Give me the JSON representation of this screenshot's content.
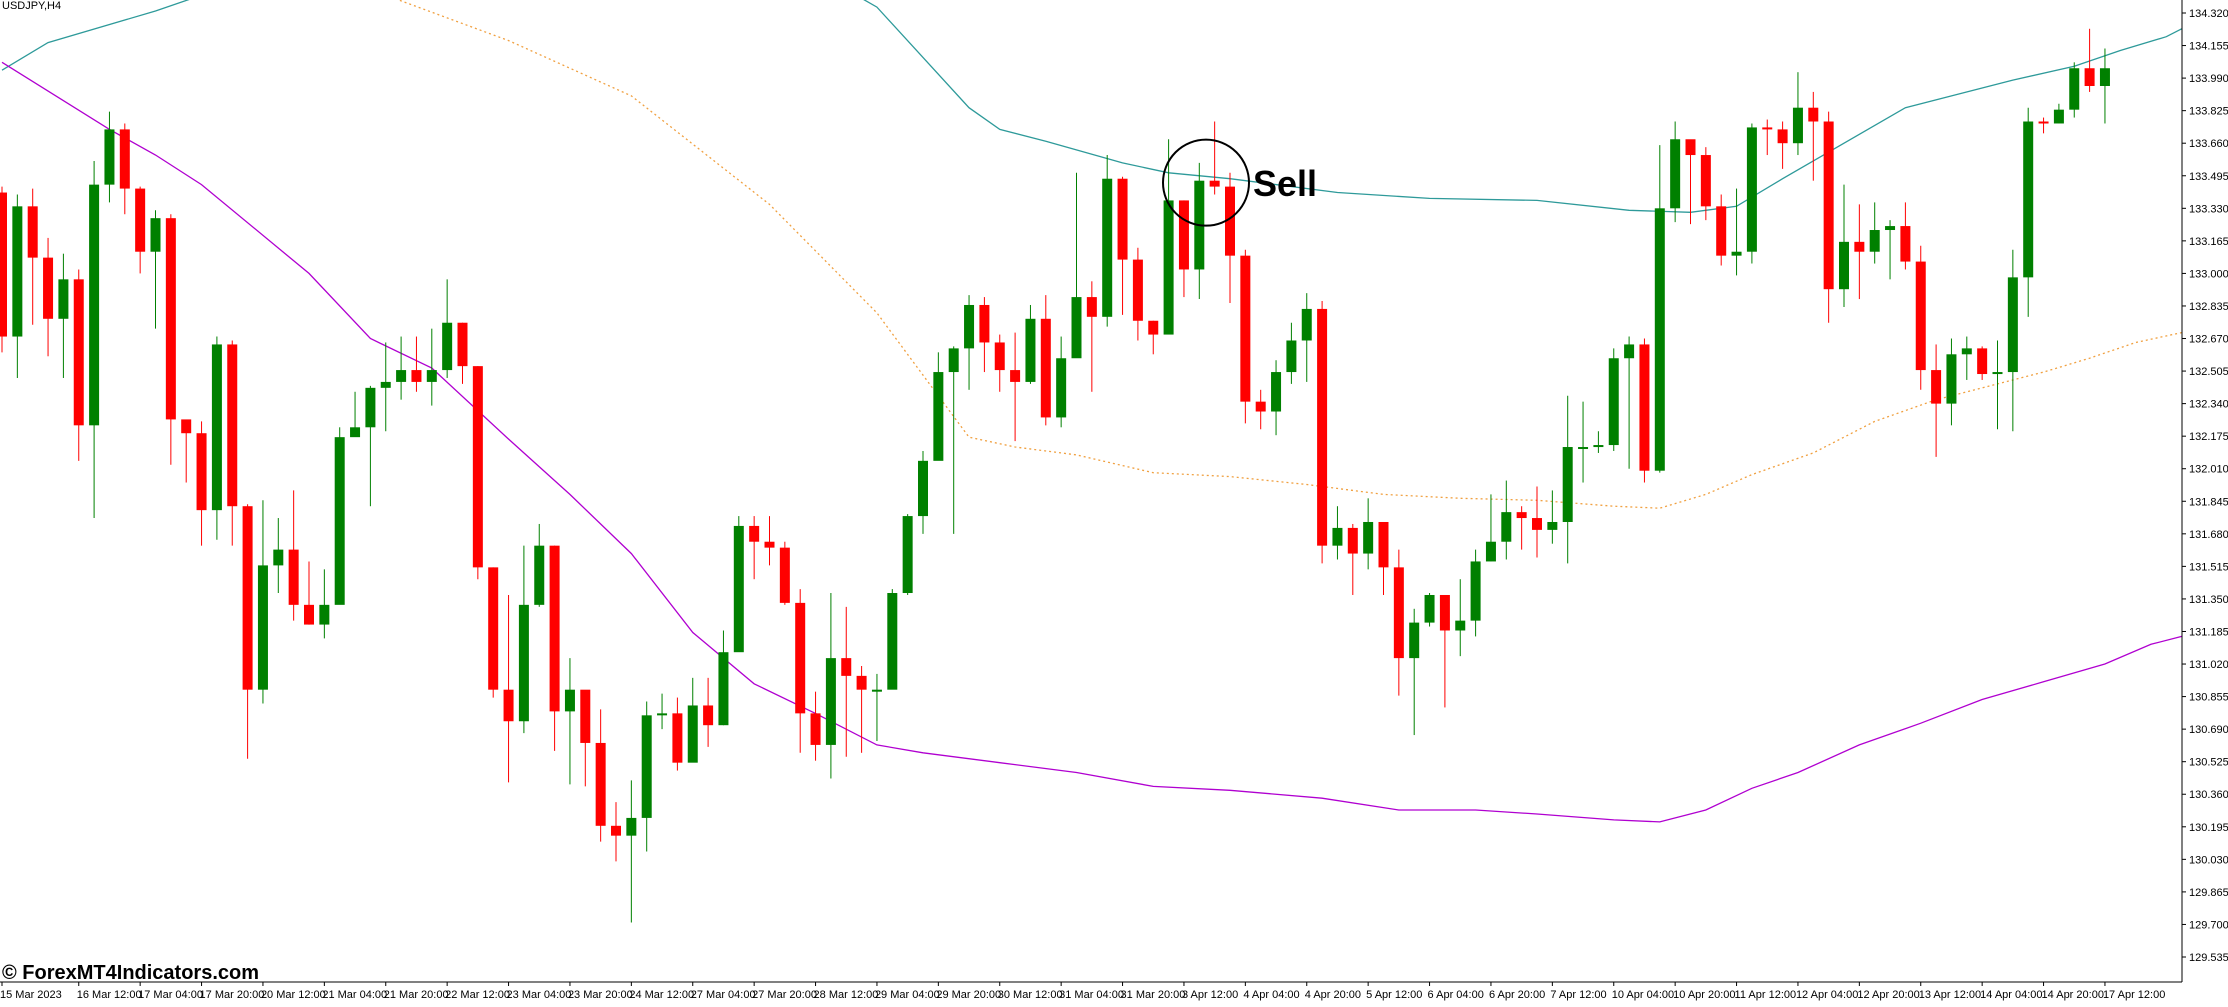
{
  "window": {
    "symbol": "USDJPY,H4"
  },
  "watermark": "© ForexMT4Indicators.com",
  "annotation": {
    "text": "Sell",
    "price": 133.46
  },
  "colors": {
    "bull": "#008000",
    "bear": "#ff0000",
    "upper_band": "#2e9a9a",
    "lower_band": "#b000d0",
    "middle_line": "#f0a040",
    "axis": "#000000",
    "background": "#ffffff"
  },
  "chart_data": {
    "type": "candlestick",
    "ylim": [
      129.535,
      134.4
    ],
    "price_ticks": [
      "134.320",
      "134.155",
      "133.990",
      "133.825",
      "133.660",
      "133.495",
      "133.330",
      "133.165",
      "133.000",
      "132.835",
      "132.670",
      "132.505",
      "132.340",
      "132.175",
      "132.010",
      "131.845",
      "131.680",
      "131.515",
      "131.350",
      "131.185",
      "131.020",
      "130.855",
      "130.690",
      "130.525",
      "130.360",
      "130.195",
      "130.030",
      "129.865",
      "129.700",
      "129.535"
    ],
    "time_ticks": [
      {
        "label": "15 Mar 2023",
        "bar": 0
      },
      {
        "label": "16 Mar 12:00",
        "bar": 5
      },
      {
        "label": "17 Mar 04:00",
        "bar": 9
      },
      {
        "label": "17 Mar 20:00",
        "bar": 13
      },
      {
        "label": "20 Mar 12:00",
        "bar": 17
      },
      {
        "label": "21 Mar 04:00",
        "bar": 21
      },
      {
        "label": "21 Mar 20:00",
        "bar": 25
      },
      {
        "label": "22 Mar 12:00",
        "bar": 29
      },
      {
        "label": "23 Mar 04:00",
        "bar": 33
      },
      {
        "label": "23 Mar 20:00",
        "bar": 37
      },
      {
        "label": "24 Mar 12:00",
        "bar": 41
      },
      {
        "label": "27 Mar 04:00",
        "bar": 45
      },
      {
        "label": "27 Mar 20:00",
        "bar": 49
      },
      {
        "label": "28 Mar 12:00",
        "bar": 53
      },
      {
        "label": "29 Mar 04:00",
        "bar": 57
      },
      {
        "label": "29 Mar 20:00",
        "bar": 61
      },
      {
        "label": "30 Mar 12:00",
        "bar": 65
      },
      {
        "label": "31 Mar 04:00",
        "bar": 69
      },
      {
        "label": "31 Mar 20:00",
        "bar": 73
      },
      {
        "label": "3 Apr 12:00",
        "bar": 77
      },
      {
        "label": "4 Apr 04:00",
        "bar": 81
      },
      {
        "label": "4 Apr 20:00",
        "bar": 85
      },
      {
        "label": "5 Apr 12:00",
        "bar": 89
      },
      {
        "label": "6 Apr 04:00",
        "bar": 93
      },
      {
        "label": "6 Apr 20:00",
        "bar": 97
      },
      {
        "label": "7 Apr 12:00",
        "bar": 101
      },
      {
        "label": "10 Apr 04:00",
        "bar": 105
      },
      {
        "label": "10 Apr 20:00",
        "bar": 109
      },
      {
        "label": "11 Apr 12:00",
        "bar": 113
      },
      {
        "label": "12 Apr 04:00",
        "bar": 117
      },
      {
        "label": "12 Apr 20:00",
        "bar": 121
      },
      {
        "label": "13 Apr 12:00",
        "bar": 125
      },
      {
        "label": "14 Apr 04:00",
        "bar": 129
      },
      {
        "label": "14 Apr 20:00",
        "bar": 133
      },
      {
        "label": "17 Apr 12:00",
        "bar": 137
      }
    ],
    "candles": [
      [
        133.41,
        132.68,
        133.44,
        132.6
      ],
      [
        132.68,
        133.34,
        133.4,
        132.47
      ],
      [
        133.34,
        133.08,
        133.43,
        132.74
      ],
      [
        133.08,
        132.77,
        133.18,
        132.58
      ],
      [
        132.77,
        132.97,
        133.1,
        132.47
      ],
      [
        132.97,
        132.23,
        133.02,
        132.05
      ],
      [
        132.23,
        133.45,
        133.57,
        131.76
      ],
      [
        133.45,
        133.73,
        133.82,
        133.36
      ],
      [
        133.73,
        133.43,
        133.76,
        133.3
      ],
      [
        133.43,
        133.11,
        133.44,
        133.0
      ],
      [
        133.11,
        133.28,
        133.32,
        132.72
      ],
      [
        133.28,
        132.26,
        133.3,
        132.03
      ],
      [
        132.26,
        132.19,
        132.25,
        131.94
      ],
      [
        132.19,
        131.8,
        132.25,
        131.62
      ],
      [
        131.8,
        132.64,
        132.68,
        131.65
      ],
      [
        132.64,
        131.82,
        132.66,
        131.62
      ],
      [
        131.82,
        130.89,
        131.83,
        130.54
      ],
      [
        130.89,
        131.52,
        131.85,
        130.82
      ],
      [
        131.52,
        131.6,
        131.76,
        131.38
      ],
      [
        131.6,
        131.32,
        131.9,
        131.24
      ],
      [
        131.32,
        131.22,
        131.54,
        131.22
      ],
      [
        131.22,
        131.32,
        131.5,
        131.15
      ],
      [
        131.32,
        132.17,
        132.22,
        131.8
      ],
      [
        132.17,
        132.22,
        132.4,
        132.2
      ],
      [
        132.22,
        132.42,
        132.43,
        131.82
      ],
      [
        132.42,
        132.45,
        132.65,
        132.2
      ],
      [
        132.45,
        132.51,
        132.68,
        132.36
      ],
      [
        132.51,
        132.45,
        132.68,
        132.4
      ],
      [
        132.45,
        132.51,
        132.72,
        132.33
      ],
      [
        132.51,
        132.75,
        132.97,
        132.47
      ],
      [
        132.75,
        132.53,
        132.75,
        132.44
      ],
      [
        132.53,
        131.51,
        132.53,
        131.45
      ],
      [
        131.51,
        130.89,
        131.51,
        130.85
      ],
      [
        130.89,
        130.73,
        131.37,
        130.42
      ],
      [
        130.73,
        131.32,
        131.62,
        130.67
      ],
      [
        131.32,
        131.62,
        131.73,
        131.31
      ],
      [
        131.62,
        130.78,
        131.62,
        130.58
      ],
      [
        130.78,
        130.89,
        131.05,
        130.41
      ],
      [
        130.89,
        130.62,
        130.77,
        130.4
      ],
      [
        130.62,
        130.2,
        130.79,
        130.12
      ],
      [
        130.2,
        130.15,
        130.32,
        130.02
      ],
      [
        130.15,
        130.24,
        130.43,
        129.71
      ],
      [
        130.24,
        130.76,
        130.83,
        130.07
      ],
      [
        130.76,
        130.77,
        130.87,
        130.69
      ],
      [
        130.77,
        130.52,
        130.85,
        130.48
      ],
      [
        130.52,
        130.81,
        130.95,
        130.56
      ],
      [
        130.81,
        130.71,
        130.95,
        130.6
      ],
      [
        130.71,
        131.08,
        131.19,
        130.71
      ],
      [
        131.08,
        131.72,
        131.77,
        131.28
      ],
      [
        131.72,
        131.64,
        131.77,
        131.45
      ],
      [
        131.64,
        131.61,
        131.77,
        131.52
      ],
      [
        131.61,
        131.33,
        131.64,
        131.32
      ],
      [
        131.33,
        130.77,
        131.4,
        130.57
      ],
      [
        130.77,
        130.61,
        130.88,
        130.53
      ],
      [
        130.61,
        131.05,
        131.38,
        130.44
      ],
      [
        131.05,
        130.96,
        131.31,
        130.55
      ],
      [
        130.96,
        130.89,
        131.01,
        130.57
      ],
      [
        130.89,
        130.89,
        130.97,
        130.63
      ],
      [
        130.89,
        131.38,
        131.4,
        130.93
      ],
      [
        131.38,
        131.77,
        131.78,
        131.37
      ],
      [
        131.77,
        132.05,
        132.1,
        131.68
      ],
      [
        132.05,
        132.5,
        132.6,
        132.06
      ],
      [
        132.5,
        132.62,
        132.63,
        131.68
      ],
      [
        132.62,
        132.84,
        132.89,
        132.41
      ],
      [
        132.84,
        132.65,
        132.88,
        132.5
      ],
      [
        132.65,
        132.51,
        132.69,
        132.4
      ],
      [
        132.51,
        132.45,
        132.7,
        132.15
      ],
      [
        132.45,
        132.77,
        132.84,
        132.44
      ],
      [
        132.77,
        132.27,
        132.89,
        132.23
      ],
      [
        132.27,
        132.57,
        132.68,
        132.22
      ],
      [
        132.57,
        132.88,
        133.51,
        132.69
      ],
      [
        132.88,
        132.78,
        132.96,
        132.4
      ],
      [
        132.78,
        133.48,
        133.6,
        132.73
      ],
      [
        133.48,
        133.07,
        133.49,
        132.79
      ],
      [
        133.07,
        132.76,
        133.13,
        132.66
      ],
      [
        132.76,
        132.69,
        132.76,
        132.59
      ],
      [
        132.69,
        133.37,
        133.68,
        132.74
      ],
      [
        133.37,
        133.02,
        133.37,
        132.88
      ],
      [
        133.02,
        133.47,
        133.56,
        132.87
      ],
      [
        133.47,
        133.44,
        133.77,
        133.4
      ],
      [
        133.44,
        133.09,
        133.51,
        132.85
      ],
      [
        133.09,
        132.35,
        133.12,
        132.24
      ],
      [
        132.35,
        132.3,
        132.41,
        132.21
      ],
      [
        132.3,
        132.5,
        132.56,
        132.18
      ],
      [
        132.5,
        132.66,
        132.75,
        132.44
      ],
      [
        132.66,
        132.82,
        132.9,
        132.45
      ],
      [
        132.82,
        131.62,
        132.86,
        131.53
      ],
      [
        131.62,
        131.71,
        131.82,
        131.55
      ],
      [
        131.71,
        131.58,
        131.73,
        131.37
      ],
      [
        131.58,
        131.74,
        131.86,
        131.5
      ],
      [
        131.74,
        131.51,
        131.72,
        131.37
      ],
      [
        131.51,
        131.05,
        131.6,
        130.86
      ],
      [
        131.05,
        131.23,
        131.3,
        130.66
      ],
      [
        131.23,
        131.37,
        131.38,
        131.21
      ],
      [
        131.37,
        131.19,
        131.36,
        130.8
      ],
      [
        131.19,
        131.24,
        131.45,
        131.06
      ],
      [
        131.24,
        131.54,
        131.6,
        131.16
      ],
      [
        131.54,
        131.64,
        131.88,
        131.54
      ],
      [
        131.64,
        131.79,
        131.95,
        131.55
      ],
      [
        131.79,
        131.76,
        131.82,
        131.6
      ],
      [
        131.76,
        131.7,
        131.92,
        131.56
      ],
      [
        131.7,
        131.74,
        131.9,
        131.63
      ],
      [
        131.74,
        132.12,
        132.38,
        131.53
      ],
      [
        132.12,
        132.12,
        132.35,
        131.94
      ],
      [
        132.12,
        132.13,
        132.2,
        132.09
      ],
      [
        132.13,
        132.57,
        132.62,
        132.1
      ],
      [
        132.57,
        132.64,
        132.68,
        132.01
      ],
      [
        132.64,
        132.0,
        132.67,
        131.94
      ],
      [
        132.0,
        133.33,
        133.65,
        131.99
      ],
      [
        133.33,
        133.68,
        133.77,
        133.26
      ],
      [
        133.68,
        133.6,
        133.67,
        133.25
      ],
      [
        133.6,
        133.34,
        133.64,
        133.27
      ],
      [
        133.34,
        133.09,
        133.4,
        133.04
      ],
      [
        133.09,
        133.11,
        133.43,
        132.99
      ],
      [
        133.11,
        133.74,
        133.76,
        133.05
      ],
      [
        133.74,
        133.73,
        133.78,
        133.6
      ],
      [
        133.73,
        133.66,
        133.77,
        133.53
      ],
      [
        133.66,
        133.84,
        134.02,
        133.6
      ],
      [
        133.84,
        133.77,
        133.92,
        133.47
      ],
      [
        133.77,
        132.92,
        133.82,
        132.75
      ],
      [
        132.92,
        133.16,
        133.45,
        132.83
      ],
      [
        133.16,
        133.11,
        133.35,
        132.87
      ],
      [
        133.11,
        133.22,
        133.36,
        133.05
      ],
      [
        133.22,
        133.24,
        133.27,
        132.97
      ],
      [
        133.24,
        133.06,
        133.36,
        133.02
      ],
      [
        133.06,
        132.51,
        133.14,
        132.41
      ],
      [
        132.51,
        132.34,
        132.64,
        132.07
      ],
      [
        132.34,
        132.59,
        132.67,
        132.23
      ],
      [
        132.59,
        132.62,
        132.68,
        132.46
      ],
      [
        132.62,
        132.49,
        132.63,
        132.46
      ],
      [
        132.49,
        132.5,
        132.66,
        132.21
      ],
      [
        132.5,
        132.98,
        133.12,
        132.2
      ],
      [
        132.98,
        133.77,
        133.84,
        132.78
      ],
      [
        133.77,
        133.76,
        133.79,
        133.71
      ],
      [
        133.76,
        133.83,
        133.86,
        133.76
      ],
      [
        133.83,
        134.04,
        134.07,
        133.79
      ],
      [
        134.04,
        133.95,
        134.24,
        133.92
      ],
      [
        133.95,
        134.04,
        134.14,
        133.76
      ]
    ],
    "upper_band": [
      [
        0,
        134.03
      ],
      [
        3,
        134.17
      ],
      [
        10,
        134.33
      ],
      [
        13,
        134.41
      ],
      [
        16,
        134.46
      ],
      [
        20,
        134.55
      ],
      [
        27,
        134.7
      ],
      [
        33,
        134.85
      ],
      [
        40,
        135.0
      ],
      [
        48,
        134.75
      ],
      [
        57,
        134.35
      ],
      [
        63,
        133.84
      ],
      [
        65,
        133.73
      ],
      [
        68,
        133.67
      ],
      [
        73,
        133.56
      ],
      [
        76,
        133.51
      ],
      [
        80,
        133.48
      ],
      [
        87,
        133.41
      ],
      [
        93,
        133.38
      ],
      [
        100,
        133.37
      ],
      [
        106,
        133.32
      ],
      [
        110,
        133.31
      ],
      [
        113,
        133.34
      ],
      [
        116,
        133.48
      ],
      [
        120,
        133.66
      ],
      [
        124,
        133.84
      ],
      [
        127,
        133.9
      ],
      [
        131,
        133.98
      ],
      [
        135,
        134.05
      ],
      [
        138,
        134.13
      ],
      [
        141,
        134.2
      ],
      [
        142,
        134.24
      ]
    ],
    "middle_line": [
      [
        25,
        134.41
      ],
      [
        33,
        134.18
      ],
      [
        41,
        133.9
      ],
      [
        50,
        133.35
      ],
      [
        57,
        132.8
      ],
      [
        63,
        132.17
      ],
      [
        66,
        132.12
      ],
      [
        70,
        132.08
      ],
      [
        75,
        131.99
      ],
      [
        80,
        131.97
      ],
      [
        85,
        131.93
      ],
      [
        90,
        131.88
      ],
      [
        95,
        131.86
      ],
      [
        100,
        131.85
      ],
      [
        105,
        131.82
      ],
      [
        108,
        131.81
      ],
      [
        111,
        131.88
      ],
      [
        114,
        131.98
      ],
      [
        118,
        132.09
      ],
      [
        122,
        132.25
      ],
      [
        126,
        132.36
      ],
      [
        130,
        132.44
      ],
      [
        133,
        132.5
      ],
      [
        136,
        132.57
      ],
      [
        139,
        132.65
      ],
      [
        142,
        132.7
      ]
    ],
    "lower_band": [
      [
        0,
        134.07
      ],
      [
        7,
        133.73
      ],
      [
        10,
        133.6
      ],
      [
        13,
        133.45
      ],
      [
        20,
        133.0
      ],
      [
        24,
        132.67
      ],
      [
        28,
        132.52
      ],
      [
        33,
        132.16
      ],
      [
        37,
        131.88
      ],
      [
        41,
        131.58
      ],
      [
        45,
        131.18
      ],
      [
        49,
        130.92
      ],
      [
        53,
        130.77
      ],
      [
        57,
        130.61
      ],
      [
        60,
        130.57
      ],
      [
        65,
        130.52
      ],
      [
        70,
        130.47
      ],
      [
        75,
        130.4
      ],
      [
        80,
        130.38
      ],
      [
        86,
        130.34
      ],
      [
        91,
        130.28
      ],
      [
        96,
        130.28
      ],
      [
        100,
        130.26
      ],
      [
        105,
        130.23
      ],
      [
        108,
        130.22
      ],
      [
        111,
        130.28
      ],
      [
        114,
        130.39
      ],
      [
        117,
        130.47
      ],
      [
        121,
        130.61
      ],
      [
        125,
        130.72
      ],
      [
        129,
        130.84
      ],
      [
        133,
        130.93
      ],
      [
        137,
        131.02
      ],
      [
        140,
        131.12
      ],
      [
        142,
        131.16
      ]
    ]
  }
}
